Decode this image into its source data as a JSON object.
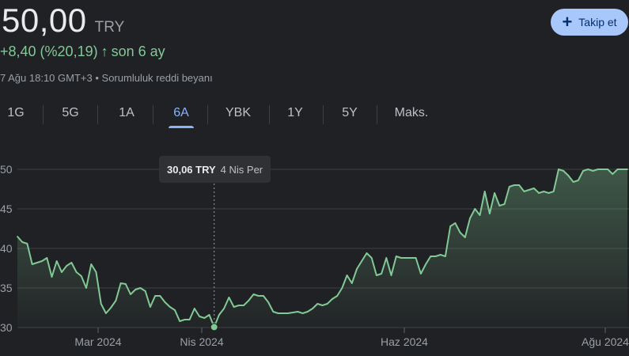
{
  "quote": {
    "price": "50,00",
    "currency": "TRY",
    "change_text": "+8,40 (%20,19)",
    "arrow": "↑",
    "period_text": "son 6 ay",
    "timestamp": "7 Ağu 18:10 GMT+3",
    "bullet": "•",
    "disclaimer": "Sorumluluk reddi beyanı"
  },
  "follow_button": {
    "icon": "plus-icon",
    "label": "Takip et"
  },
  "tabs": [
    {
      "label": "1G"
    },
    {
      "label": "5G"
    },
    {
      "label": "1A"
    },
    {
      "label": "6A",
      "active": true
    },
    {
      "label": "YBK"
    },
    {
      "label": "1Y"
    },
    {
      "label": "5Y"
    },
    {
      "label": "Maks."
    }
  ],
  "tooltip": {
    "price": "30,06 TRY",
    "date": "4 Nis Per"
  },
  "colors": {
    "line": "#81c995",
    "accent": "#8ab4f8",
    "button_bg": "#a8c7fa",
    "grid": "#3c4043"
  },
  "chart_data": {
    "type": "area",
    "y_ticks": [
      "30",
      "35",
      "40",
      "45",
      "50"
    ],
    "ylim": [
      30,
      50
    ],
    "x_tick_labels": [
      "Mar 2024",
      "Nis 2024",
      "Haz 2024",
      "Ağu 2024"
    ],
    "grid": true,
    "series": [
      {
        "values": [
          41.5,
          40.8,
          40.6,
          38.0,
          38.2,
          38.4,
          38.8,
          36.4,
          38.4,
          37.0,
          37.8,
          38.2,
          37.0,
          36.5,
          35.0,
          38.0,
          37.0,
          33.0,
          31.8,
          32.5,
          33.4,
          35.6,
          35.5,
          34.2,
          34.8,
          35.0,
          34.6,
          32.6,
          34.0,
          34.0,
          33.2,
          32.6,
          32.2,
          30.8,
          31.0,
          31.0,
          32.4,
          31.4,
          31.2,
          31.6,
          30.06,
          31.6,
          32.4,
          33.8,
          32.6,
          32.8,
          32.8,
          33.4,
          34.2,
          34.0,
          34.0,
          33.2,
          32.0,
          31.8,
          31.8,
          31.8,
          31.9,
          32.0,
          31.8,
          32.0,
          32.4,
          33.0,
          32.8,
          33.0,
          33.6,
          34.0,
          35.0,
          36.6,
          35.6,
          37.4,
          38.4,
          39.4,
          38.8,
          36.6,
          36.8,
          38.8,
          36.6,
          39.0,
          38.8,
          38.8,
          38.8,
          38.8,
          36.8,
          38.0,
          39.0,
          39.0,
          39.2,
          39.0,
          42.8,
          43.2,
          42.0,
          41.4,
          43.8,
          45.0,
          44.2,
          47.2,
          44.4,
          47.0,
          45.4,
          45.6,
          47.8,
          48.0,
          48.0,
          47.2,
          47.4,
          47.6,
          47.0,
          47.2,
          47.0,
          47.2,
          50.0,
          49.8,
          49.2,
          48.4,
          48.6,
          49.8,
          50.0,
          49.8,
          50.0,
          50.0,
          50.0,
          49.4,
          50.0,
          50.0,
          50.0
        ]
      }
    ]
  }
}
